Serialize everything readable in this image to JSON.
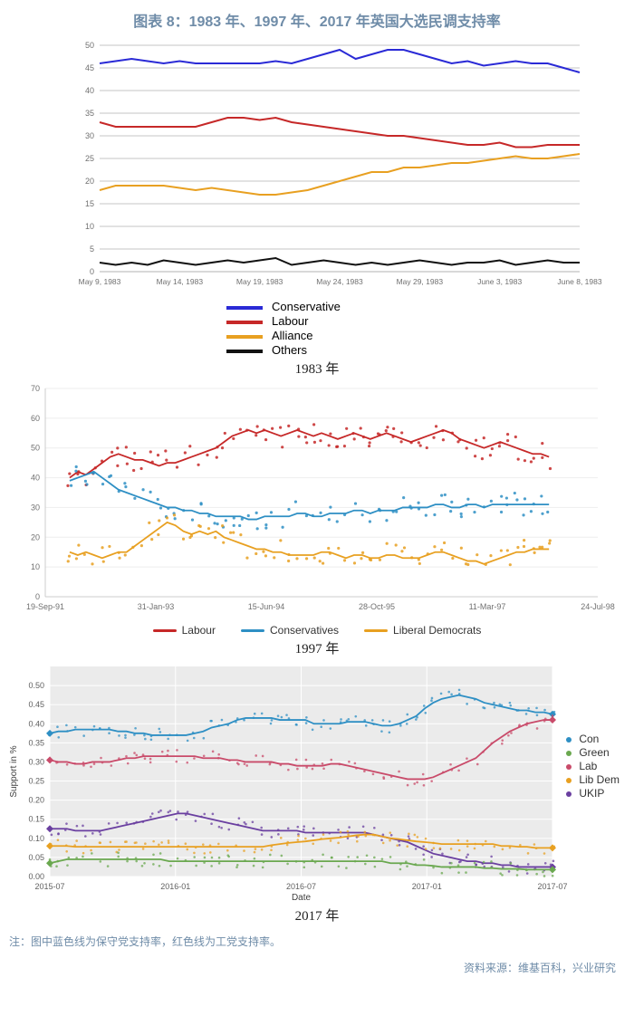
{
  "title": "图表 8：1983 年、1997 年、2017 年英国大选民调支持率",
  "footnote": "注：图中蓝色线为保守党支持率，红色线为工党支持率。",
  "source": "资料来源：维基百科，兴业研究",
  "panel1": {
    "label": "1983 年",
    "type": "line",
    "ylim": [
      0,
      50
    ],
    "yticks": [
      0,
      5,
      10,
      15,
      20,
      25,
      30,
      35,
      40,
      45,
      50
    ],
    "grid_color": "#b0b0b0",
    "axis_color": "#b0b0b0",
    "tick_fontsize": 9,
    "tick_color": "#707070",
    "legend_fontsize": 13,
    "xticks": [
      "May 9, 1983",
      "May 14, 1983",
      "May 19, 1983",
      "May 24, 1983",
      "May 29, 1983",
      "June 3, 1983",
      "June 8, 1983"
    ],
    "n": 31,
    "series": [
      {
        "name": "Conservative",
        "color": "#2a2ad6",
        "width": 2,
        "y": [
          46,
          46.5,
          47,
          46.5,
          46,
          46.5,
          46,
          46,
          46,
          46,
          46,
          46.5,
          46,
          47,
          48,
          49,
          47,
          48,
          49,
          49,
          48,
          47,
          46,
          46.5,
          45.5,
          46,
          46.5,
          46,
          46,
          45,
          44
        ]
      },
      {
        "name": "Labour",
        "color": "#c62828",
        "width": 2,
        "y": [
          33,
          32,
          32,
          32,
          32,
          32,
          32,
          33,
          34,
          34,
          33.5,
          34,
          33,
          32.5,
          32,
          31.5,
          31,
          30.5,
          30,
          30,
          29.5,
          29,
          28.5,
          28,
          28,
          28.5,
          27.5,
          27.5,
          28,
          28,
          28
        ]
      },
      {
        "name": "Alliance",
        "color": "#e8a021",
        "width": 2,
        "y": [
          18,
          19,
          19,
          19,
          19,
          18.5,
          18,
          18.5,
          18,
          17.5,
          17,
          17,
          17.5,
          18,
          19,
          20,
          21,
          22,
          22,
          23,
          23,
          23.5,
          24,
          24,
          24.5,
          25,
          25.5,
          25,
          25,
          25.5,
          26
        ]
      },
      {
        "name": "Others",
        "color": "#111111",
        "width": 2,
        "y": [
          2,
          1.5,
          2,
          1.5,
          2.5,
          2,
          1.5,
          2,
          2.5,
          2,
          2.5,
          3,
          1.5,
          2,
          2.5,
          2,
          1.5,
          2,
          1.5,
          2,
          2.5,
          2,
          1.5,
          2,
          2,
          2.5,
          1.5,
          2,
          2.5,
          2,
          2
        ]
      }
    ]
  },
  "panel2": {
    "label": "1997 年",
    "type": "scatter+line",
    "ylim": [
      0,
      70
    ],
    "yticks": [
      0,
      10,
      20,
      30,
      40,
      50,
      60,
      70
    ],
    "grid_color": "#eeeeee",
    "axis_color": "#cccccc",
    "tick_fontsize": 9,
    "tick_color": "#707070",
    "marker_r": 1.6,
    "scatter_jitter": 4,
    "line_width": 1.8,
    "xticks": [
      "19-Sep-91",
      "31-Jan-93",
      "15-Jun-94",
      "28-Oct-95",
      "11-Mar-97",
      "24-Jul-98"
    ],
    "legend": [
      {
        "name": "Labour",
        "color": "#c62828"
      },
      {
        "name": "Conservatives",
        "color": "#2e8fc4"
      },
      {
        "name": "Liberal Democrats",
        "color": "#e8a021"
      }
    ],
    "n": 60,
    "series": [
      {
        "name": "Labour",
        "color": "#c62828",
        "y": [
          40,
          42,
          41,
          43,
          45,
          47,
          48,
          47,
          46,
          46,
          45,
          44,
          45,
          45,
          46,
          47,
          48,
          49,
          50,
          52,
          54,
          55,
          56,
          55,
          56,
          55,
          54,
          55,
          56,
          55,
          54,
          55,
          54,
          53,
          54,
          55,
          54,
          53,
          54,
          55,
          54,
          53,
          52,
          53,
          54,
          55,
          56,
          55,
          53,
          52,
          51,
          50,
          51,
          52,
          51,
          50,
          49,
          48,
          48,
          47
        ]
      },
      {
        "name": "Conservatives",
        "color": "#2e8fc4",
        "y": [
          39,
          40,
          41,
          42,
          40,
          38,
          36,
          35,
          34,
          33,
          32,
          31,
          30,
          30,
          29,
          29,
          28,
          28,
          27,
          27,
          27,
          27,
          26,
          26,
          27,
          27,
          27,
          27,
          28,
          28,
          27,
          27,
          28,
          28,
          28,
          29,
          29,
          28,
          29,
          29,
          29,
          30,
          30,
          30,
          30,
          31,
          31,
          30,
          30,
          31,
          31,
          30,
          31,
          31,
          31,
          31,
          31,
          31,
          31,
          31
        ]
      },
      {
        "name": "Liberal Democrats",
        "color": "#e8a021",
        "y": [
          15,
          14,
          15,
          14,
          13,
          14,
          15,
          15,
          17,
          19,
          21,
          23,
          25,
          24,
          22,
          21,
          22,
          21,
          22,
          20,
          19,
          18,
          17,
          16,
          16,
          15,
          15,
          14,
          14,
          14,
          14,
          15,
          15,
          14,
          13,
          14,
          14,
          13,
          13,
          14,
          14,
          13,
          13,
          13,
          14,
          15,
          15,
          14,
          13,
          12,
          12,
          11,
          12,
          13,
          14,
          15,
          15,
          16,
          16,
          16
        ]
      }
    ]
  },
  "panel3": {
    "label": "2017 年",
    "type": "scatter+line",
    "ylim": [
      0,
      0.55
    ],
    "yticks": [
      0.0,
      0.05,
      0.1,
      0.15,
      0.2,
      0.25,
      0.3,
      0.35,
      0.4,
      0.45,
      0.5
    ],
    "ylabel": "Support in %",
    "xlabel": "Date",
    "grid_color": "#eaeaea",
    "panel_bg": "#ebebeb",
    "axis_color": "#bbbbbb",
    "tick_fontsize": 9,
    "tick_color": "#606060",
    "marker_r": 1.3,
    "scatter_jitter": 0.018,
    "line_width": 1.8,
    "xticks": [
      "2015-07",
      "2016-01",
      "2016-07",
      "2017-01",
      "2017-07"
    ],
    "n": 60,
    "legend": [
      {
        "name": "Con",
        "color": "#2e8fc4"
      },
      {
        "name": "Green",
        "color": "#6aa84f"
      },
      {
        "name": "Lab",
        "color": "#c94b6a"
      },
      {
        "name": "Lib Dem",
        "color": "#e8a021"
      },
      {
        "name": "UKIP",
        "color": "#6a3fa0"
      }
    ],
    "start_diamond": true,
    "end_diamond": true,
    "series": [
      {
        "name": "Con",
        "color": "#2e8fc4",
        "y": [
          0.375,
          0.38,
          0.38,
          0.385,
          0.385,
          0.385,
          0.385,
          0.385,
          0.38,
          0.38,
          0.375,
          0.375,
          0.37,
          0.37,
          0.37,
          0.37,
          0.37,
          0.375,
          0.38,
          0.39,
          0.395,
          0.4,
          0.41,
          0.415,
          0.415,
          0.415,
          0.415,
          0.41,
          0.41,
          0.41,
          0.41,
          0.4,
          0.4,
          0.4,
          0.4,
          0.405,
          0.405,
          0.405,
          0.4,
          0.395,
          0.395,
          0.4,
          0.41,
          0.42,
          0.44,
          0.455,
          0.465,
          0.47,
          0.475,
          0.47,
          0.465,
          0.455,
          0.45,
          0.445,
          0.44,
          0.435,
          0.435,
          0.43,
          0.43,
          0.425
        ]
      },
      {
        "name": "Lab",
        "color": "#c94b6a",
        "y": [
          0.305,
          0.3,
          0.3,
          0.295,
          0.295,
          0.3,
          0.3,
          0.3,
          0.305,
          0.31,
          0.31,
          0.315,
          0.315,
          0.315,
          0.315,
          0.315,
          0.315,
          0.315,
          0.31,
          0.31,
          0.31,
          0.305,
          0.305,
          0.3,
          0.3,
          0.3,
          0.3,
          0.295,
          0.295,
          0.29,
          0.29,
          0.29,
          0.29,
          0.295,
          0.295,
          0.29,
          0.285,
          0.28,
          0.275,
          0.27,
          0.265,
          0.26,
          0.255,
          0.255,
          0.255,
          0.26,
          0.27,
          0.28,
          0.29,
          0.3,
          0.31,
          0.33,
          0.35,
          0.365,
          0.38,
          0.39,
          0.4,
          0.405,
          0.41,
          0.41
        ]
      },
      {
        "name": "UKIP",
        "color": "#6a3fa0",
        "y": [
          0.125,
          0.125,
          0.125,
          0.12,
          0.12,
          0.12,
          0.12,
          0.125,
          0.13,
          0.135,
          0.14,
          0.145,
          0.15,
          0.155,
          0.16,
          0.165,
          0.165,
          0.16,
          0.155,
          0.15,
          0.145,
          0.14,
          0.135,
          0.13,
          0.125,
          0.12,
          0.12,
          0.12,
          0.12,
          0.12,
          0.115,
          0.115,
          0.115,
          0.115,
          0.115,
          0.115,
          0.115,
          0.115,
          0.11,
          0.105,
          0.1,
          0.095,
          0.09,
          0.08,
          0.07,
          0.06,
          0.055,
          0.05,
          0.045,
          0.04,
          0.04,
          0.035,
          0.035,
          0.03,
          0.03,
          0.025,
          0.025,
          0.025,
          0.025,
          0.025
        ]
      },
      {
        "name": "Lib Dem",
        "color": "#e8a021",
        "y": [
          0.08,
          0.08,
          0.08,
          0.078,
          0.078,
          0.078,
          0.078,
          0.078,
          0.078,
          0.078,
          0.078,
          0.078,
          0.078,
          0.078,
          0.078,
          0.078,
          0.078,
          0.078,
          0.078,
          0.078,
          0.078,
          0.078,
          0.078,
          0.078,
          0.078,
          0.078,
          0.082,
          0.085,
          0.088,
          0.09,
          0.092,
          0.095,
          0.098,
          0.1,
          0.102,
          0.105,
          0.108,
          0.11,
          0.11,
          0.105,
          0.1,
          0.098,
          0.095,
          0.092,
          0.09,
          0.088,
          0.085,
          0.085,
          0.085,
          0.085,
          0.085,
          0.085,
          0.085,
          0.08,
          0.08,
          0.078,
          0.078,
          0.075,
          0.075,
          0.075
        ]
      },
      {
        "name": "Green",
        "color": "#6aa84f",
        "y": [
          0.035,
          0.04,
          0.045,
          0.045,
          0.045,
          0.045,
          0.045,
          0.045,
          0.045,
          0.045,
          0.045,
          0.045,
          0.045,
          0.045,
          0.04,
          0.04,
          0.04,
          0.04,
          0.04,
          0.04,
          0.04,
          0.04,
          0.04,
          0.04,
          0.04,
          0.04,
          0.04,
          0.04,
          0.04,
          0.04,
          0.04,
          0.04,
          0.04,
          0.04,
          0.04,
          0.04,
          0.04,
          0.04,
          0.04,
          0.04,
          0.035,
          0.035,
          0.035,
          0.03,
          0.03,
          0.028,
          0.025,
          0.025,
          0.025,
          0.025,
          0.025,
          0.022,
          0.022,
          0.02,
          0.02,
          0.02,
          0.018,
          0.018,
          0.018,
          0.018
        ]
      }
    ]
  }
}
